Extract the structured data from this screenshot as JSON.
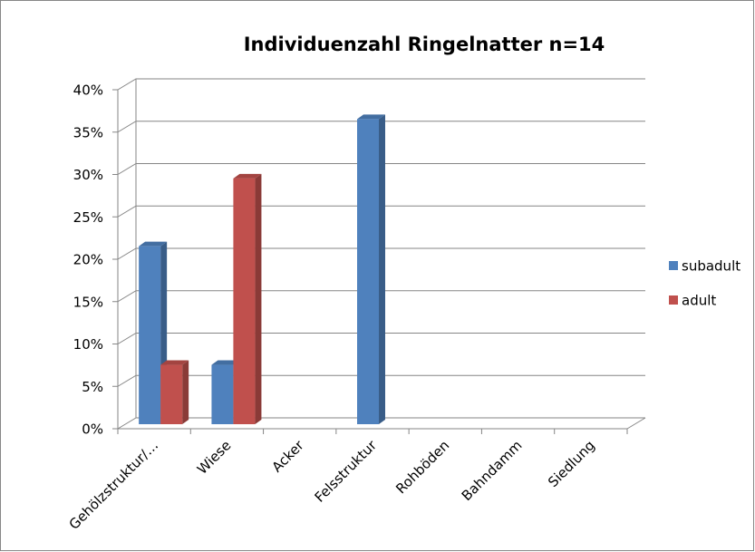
{
  "chart_data": {
    "type": "bar",
    "title": "Individuenzahl Ringelnatter n=14",
    "categories": [
      "Gehölzstruktur/…",
      "Wiese",
      "Acker",
      "Felsstruktur",
      "Rohböden",
      "Bahndamm",
      "Siedlung"
    ],
    "series": [
      {
        "name": "subadult",
        "color": "#4f81bd",
        "values": [
          21,
          7,
          0,
          36,
          0,
          0,
          0
        ]
      },
      {
        "name": "adult",
        "color": "#c0504d",
        "values": [
          7,
          29,
          0,
          0,
          0,
          0,
          0
        ]
      }
    ],
    "ylim": [
      0,
      40
    ],
    "yticks": [
      {
        "value": 0,
        "label": "0%"
      },
      {
        "value": 5,
        "label": "5%"
      },
      {
        "value": 10,
        "label": "10%"
      },
      {
        "value": 15,
        "label": "15%"
      },
      {
        "value": 20,
        "label": "20%"
      },
      {
        "value": 25,
        "label": "25%"
      },
      {
        "value": 30,
        "label": "30%"
      },
      {
        "value": 35,
        "label": "35%"
      },
      {
        "value": 40,
        "label": "40%"
      }
    ],
    "grid": true,
    "legend": "right"
  }
}
